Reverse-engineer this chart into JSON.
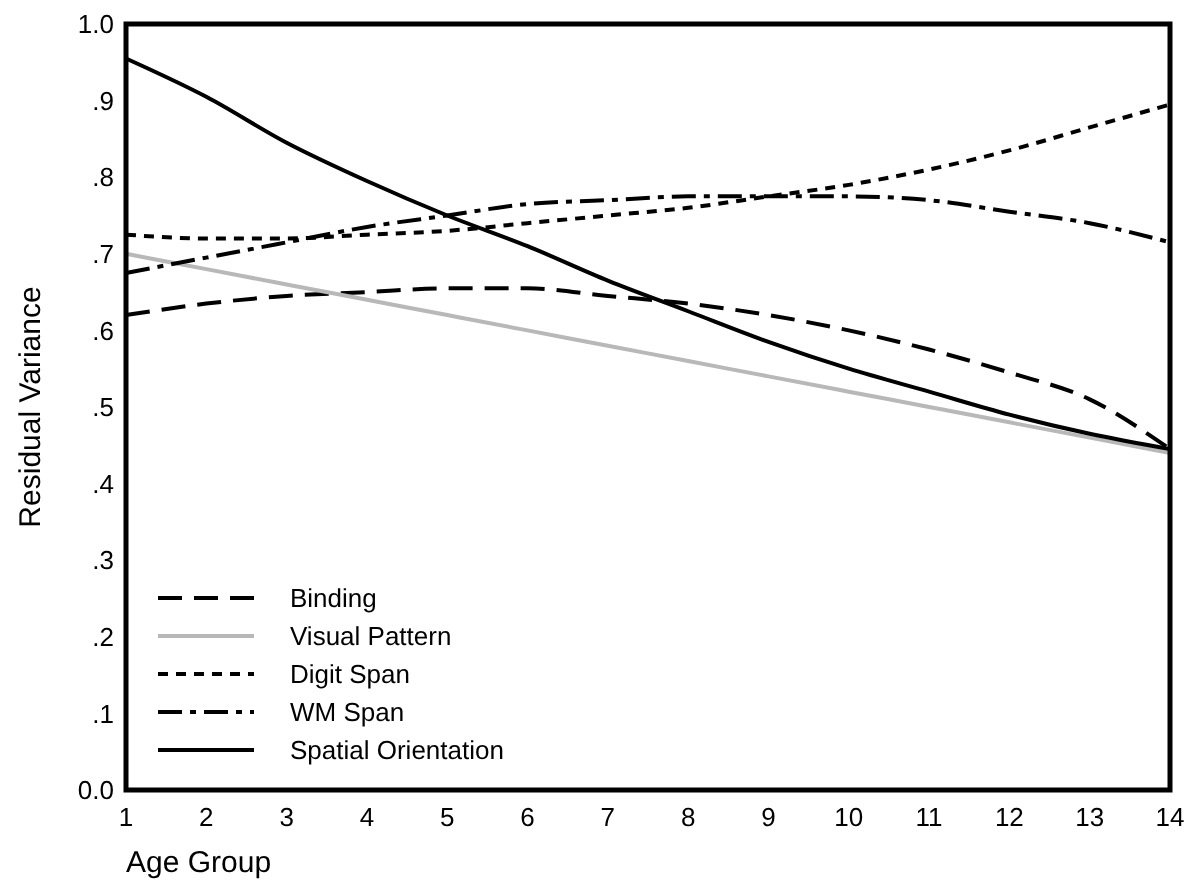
{
  "chart_data": {
    "type": "line",
    "xlabel": "Age Group",
    "ylabel": "Residual Variance",
    "x": [
      1,
      2,
      3,
      4,
      5,
      6,
      7,
      8,
      9,
      10,
      11,
      12,
      13,
      14
    ],
    "series": [
      {
        "name": "Binding",
        "color": "#000000",
        "line_style": "dashed",
        "values": [
          0.62,
          0.635,
          0.645,
          0.65,
          0.655,
          0.655,
          0.645,
          0.635,
          0.62,
          0.6,
          0.575,
          0.545,
          0.51,
          0.445
        ]
      },
      {
        "name": "Visual Pattern",
        "color": "#b8b8b8",
        "line_style": "solid",
        "values": [
          0.7,
          0.68,
          0.66,
          0.64,
          0.62,
          0.6,
          0.58,
          0.56,
          0.54,
          0.52,
          0.5,
          0.48,
          0.46,
          0.44
        ]
      },
      {
        "name": "Digit Span",
        "color": "#000000",
        "line_style": "dotted",
        "values": [
          0.725,
          0.72,
          0.72,
          0.725,
          0.73,
          0.74,
          0.75,
          0.76,
          0.775,
          0.79,
          0.81,
          0.835,
          0.865,
          0.895
        ]
      },
      {
        "name": "WM Span",
        "color": "#000000",
        "line_style": "dashdot",
        "values": [
          0.675,
          0.695,
          0.715,
          0.735,
          0.75,
          0.765,
          0.77,
          0.775,
          0.775,
          0.775,
          0.77,
          0.755,
          0.74,
          0.715
        ]
      },
      {
        "name": "Spatial Orientation",
        "color": "#000000",
        "line_style": "solid",
        "values": [
          0.955,
          0.905,
          0.845,
          0.795,
          0.75,
          0.71,
          0.665,
          0.625,
          0.585,
          0.55,
          0.52,
          0.49,
          0.465,
          0.445
        ]
      }
    ],
    "xlim": [
      1,
      14
    ],
    "xticks": [
      1,
      2,
      3,
      4,
      5,
      6,
      7,
      8,
      9,
      10,
      11,
      12,
      13,
      14
    ],
    "ylim": [
      0,
      1
    ],
    "yticks": [
      {
        "value": 0,
        "label": "0.0"
      },
      {
        "value": 0.1,
        "label": ".1"
      },
      {
        "value": 0.2,
        "label": ".2"
      },
      {
        "value": 0.3,
        "label": ".3"
      },
      {
        "value": 0.4,
        "label": ".4"
      },
      {
        "value": 0.5,
        "label": ".5"
      },
      {
        "value": 0.6,
        "label": ".6"
      },
      {
        "value": 0.7,
        "label": ".7"
      },
      {
        "value": 0.8,
        "label": ".8"
      },
      {
        "value": 0.9,
        "label": ".9"
      },
      {
        "value": 1,
        "label": "1.0"
      }
    ],
    "grid": false,
    "legend": "bottom left",
    "marker": "none"
  }
}
